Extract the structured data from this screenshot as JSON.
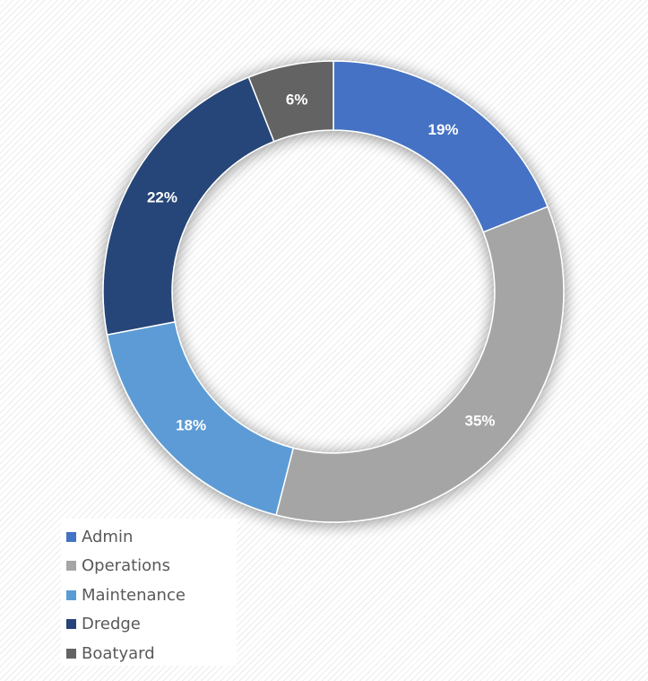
{
  "chart_data": {
    "type": "pie",
    "variant": "donut",
    "title": "",
    "categories": [
      "Admin",
      "Operations",
      "Maintenance",
      "Dredge",
      "Boatyard"
    ],
    "values": [
      19,
      35,
      18,
      22,
      6
    ],
    "value_labels": [
      "19%",
      "35%",
      "18%",
      "22%",
      "6%"
    ],
    "colors": [
      "#4472c4",
      "#a5a5a5",
      "#5b9bd5",
      "#264478",
      "#636363"
    ],
    "legend": {
      "position": "bottom-left",
      "entries": [
        {
          "label": "Admin",
          "color": "#4472c4"
        },
        {
          "label": "Operations",
          "color": "#a5a5a5"
        },
        {
          "label": "Maintenance",
          "color": "#5b9bd5"
        },
        {
          "label": "Dredge",
          "color": "#264478"
        },
        {
          "label": "Boatyard",
          "color": "#636363"
        }
      ]
    },
    "background": "diagonal-stripes"
  }
}
